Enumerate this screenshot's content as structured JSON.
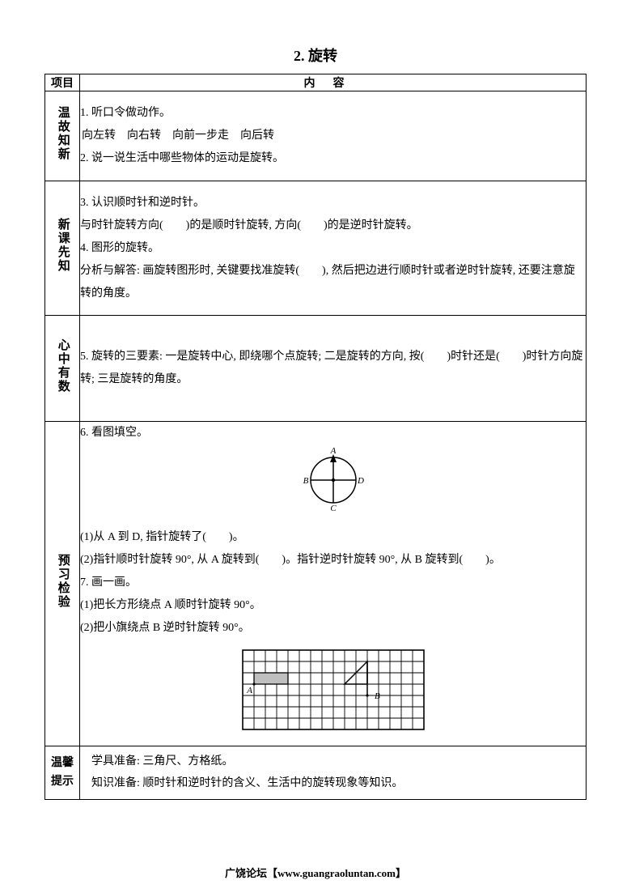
{
  "title": "2. 旋转",
  "header": {
    "left": "项目",
    "right": "内容"
  },
  "sections": [
    {
      "label": "温故知新",
      "lines": [
        "1. 听口令做动作。",
        "向左转　向右转　向前一步走　向后转",
        "2. 说一说生活中哪些物体的运动是旋转。"
      ]
    },
    {
      "label": "新课先知",
      "lines": [
        "3. 认识顺时针和逆时针。",
        "与时针旋转方向(　　)的是顺时针旋转, 方向(　　)的是逆时针旋转。",
        "4. 图形的旋转。",
        "分析与解答: 画旋转图形时, 关键要找准旋转(　　), 然后把边进行顺时针或者逆时针旋转, 还要注意旋转的角度。"
      ]
    },
    {
      "label": "心中有数",
      "lines": [
        "5. 旋转的三要素: 一是旋转中心, 即绕哪个点旋转; 二是旋转的方向, 按(　　)时针还是(　　)时针方向旋转; 三是旋转的角度。"
      ]
    },
    {
      "label": "预习检验",
      "q6": "6. 看图填空。",
      "compass": {
        "A": "A",
        "B": "B",
        "C": "C",
        "D": "D"
      },
      "q6_1": "(1)从 A 到 D, 指针旋转了(　　)。",
      "q6_2": "(2)指针顺时针旋转 90°, 从 A 旋转到(　　)。指针逆时针旋转 90°, 从 B 旋转到(　　)。",
      "q7": "7. 画一画。",
      "q7_1": "(1)把长方形绕点 A 顺时针旋转 90°。",
      "q7_2": "(2)把小旗绕点 B 逆时针旋转 90°。",
      "gridLabels": {
        "A": "A",
        "B": "B"
      }
    },
    {
      "label": "温馨提示",
      "lines": [
        "学具准备: 三角尺、方格纸。",
        "知识准备: 顺时针和逆时针的含义、生活中的旋转现象等知识。"
      ]
    }
  ],
  "footer": "广饶论坛【www.guangraoluntan.com】",
  "style": {
    "border_color": "#000000",
    "background": "#ffffff",
    "text_color": "#000000",
    "title_fontsize": 18,
    "body_fontsize": 14,
    "grid": {
      "cols": 16,
      "rows": 7,
      "cell": 14,
      "fill": "#bfbfbf",
      "stroke": "#000000"
    },
    "compass_radius": 28
  }
}
